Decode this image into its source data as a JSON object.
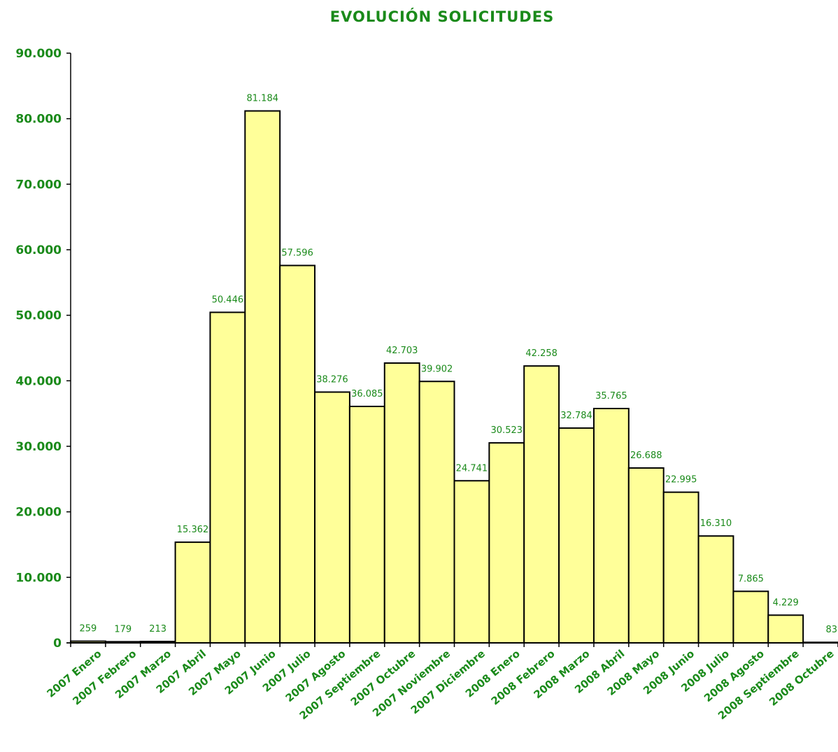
{
  "colors": {
    "text": "#1a8a1a",
    "bar_fill": "#ffff99",
    "bar_stroke": "#000000",
    "axis": "#000000"
  },
  "chart_data": {
    "type": "bar",
    "title": "EVOLUCIÓN SOLICITUDES",
    "xlabel": "",
    "ylabel": "",
    "ylim": [
      0,
      90000
    ],
    "yticks": [
      0,
      10000,
      20000,
      30000,
      40000,
      50000,
      60000,
      70000,
      80000,
      90000
    ],
    "ytick_labels": [
      "0",
      "10.000",
      "20.000",
      "30.000",
      "40.000",
      "50.000",
      "60.000",
      "70.000",
      "80.000",
      "90.000"
    ],
    "grid": false,
    "legend": "none",
    "categories": [
      "2007 Enero",
      "2007 Febrero",
      "2007 Marzo",
      "2007 Abril",
      "2007 Mayo",
      "2007 Junio",
      "2007 Julio",
      "2007 Agosto",
      "2007 Septiembre",
      "2007 Octubre",
      "2007 Noviembre",
      "2007 Diciembre",
      "2008 Enero",
      "2008 Febrero",
      "2008 Marzo",
      "2008 Abril",
      "2008 Mayo",
      "2008 Junio",
      "2008 Julio",
      "2008 Agosto",
      "2008 Septiembre",
      "2008 Octubre"
    ],
    "values": [
      259,
      179,
      213,
      15362,
      50446,
      81184,
      57596,
      38276,
      36085,
      42703,
      39902,
      24741,
      30523,
      42258,
      32784,
      35765,
      26688,
      22995,
      16310,
      7865,
      4229,
      83
    ],
    "value_labels": [
      "259",
      "179",
      "213",
      "15.362",
      "50.446",
      "81.184",
      "57.596",
      "38.276",
      "36.085",
      "42.703",
      "39.902",
      "24.741",
      "30.523",
      "42.258",
      "32.784",
      "35.765",
      "26.688",
      "22.995",
      "16.310",
      "7.865",
      "4.229",
      "83"
    ]
  }
}
